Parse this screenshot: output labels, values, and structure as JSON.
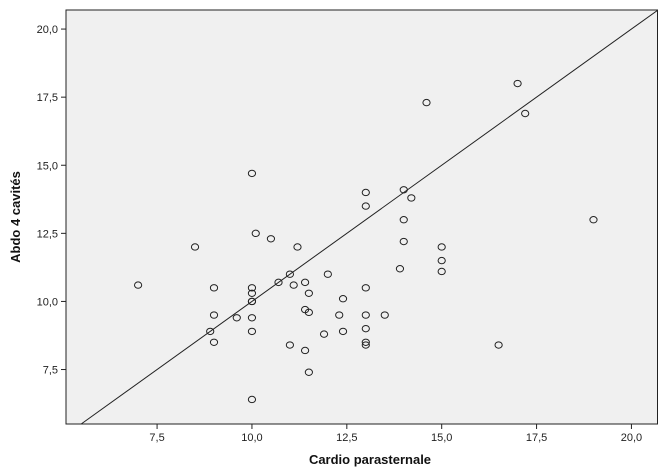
{
  "chart_data": {
    "type": "scatter",
    "title": "",
    "xlabel": "Cardio parasternale",
    "ylabel": "Abdo 4 cavités",
    "xlim": [
      5.1,
      20.7
    ],
    "ylim": [
      5.5,
      20.7
    ],
    "x_ticks": [
      7.5,
      10.0,
      12.5,
      15.0,
      17.5,
      20.0
    ],
    "x_tick_labels": [
      "7,5",
      "10,0",
      "12,5",
      "15,0",
      "17,5",
      "20,0"
    ],
    "y_ticks": [
      7.5,
      10.0,
      12.5,
      15.0,
      17.5,
      20.0
    ],
    "y_tick_labels": [
      "7,5",
      "10,0",
      "12,5",
      "15,0",
      "17,5",
      "20,0"
    ],
    "grid": false,
    "legend": "none",
    "reference_line": {
      "type": "identity",
      "slope": 1,
      "intercept": 0
    },
    "colors": {
      "plot_background": "#f0f0f0",
      "frame": "#222222",
      "marker_edge": "#222222",
      "reference_line": "#222222"
    },
    "series": [
      {
        "marker": "open-circle",
        "x": [
          7.0,
          8.5,
          8.9,
          9.0,
          9.0,
          9.0,
          9.6,
          10.0,
          10.0,
          10.0,
          10.0,
          10.0,
          10.0,
          10.0,
          10.0,
          10.1,
          10.5,
          10.7,
          11.0,
          11.0,
          11.1,
          11.2,
          11.4,
          11.4,
          11.4,
          11.5,
          11.5,
          11.5,
          11.9,
          12.0,
          12.3,
          12.4,
          12.4,
          13.0,
          13.0,
          13.0,
          13.0,
          13.0,
          13.0,
          13.0,
          13.5,
          13.9,
          14.0,
          14.0,
          14.0,
          14.2,
          14.6,
          15.0,
          15.0,
          15.0,
          16.5,
          17.0,
          17.2,
          19.0
        ],
        "y": [
          10.6,
          12.0,
          8.9,
          10.5,
          9.5,
          8.5,
          9.4,
          14.7,
          10.5,
          10.3,
          10.0,
          10.0,
          9.4,
          8.9,
          6.4,
          12.5,
          12.3,
          10.7,
          11.0,
          8.4,
          10.6,
          12.0,
          10.7,
          9.7,
          8.2,
          10.3,
          9.6,
          7.4,
          8.8,
          11.0,
          9.5,
          10.1,
          8.9,
          14.0,
          13.5,
          10.5,
          9.5,
          9.0,
          8.5,
          8.4,
          9.5,
          11.2,
          14.1,
          13.0,
          12.2,
          13.8,
          17.3,
          12.0,
          11.5,
          11.1,
          8.4,
          18.0,
          16.9,
          13.0
        ]
      }
    ]
  }
}
